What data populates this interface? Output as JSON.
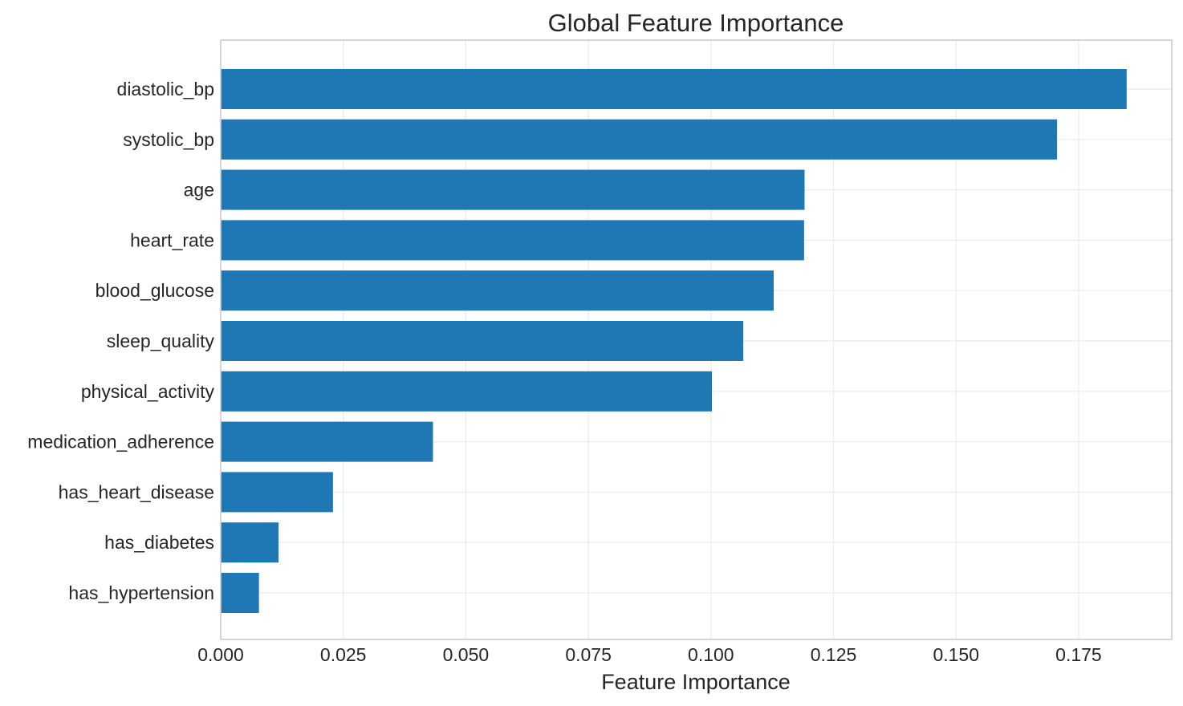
{
  "chart_data": {
    "type": "bar",
    "orientation": "horizontal",
    "title": "Global Feature Importance",
    "xlabel": "Feature Importance",
    "ylabel": "",
    "xlim": [
      0,
      0.194
    ],
    "xticks": [
      0.0,
      0.025,
      0.05,
      0.075,
      0.1,
      0.125,
      0.15,
      0.175
    ],
    "xtick_labels": [
      "0.000",
      "0.025",
      "0.050",
      "0.075",
      "0.100",
      "0.125",
      "0.150",
      "0.175"
    ],
    "grid": true,
    "bar_color": "#1f77b4",
    "categories": [
      "diastolic_bp",
      "systolic_bp",
      "age",
      "heart_rate",
      "blood_glucose",
      "sleep_quality",
      "physical_activity",
      "medication_adherence",
      "has_heart_disease",
      "has_diabetes",
      "has_hypertension"
    ],
    "values": [
      0.1848,
      0.1706,
      0.1191,
      0.119,
      0.1128,
      0.1066,
      0.1002,
      0.0433,
      0.0229,
      0.0118,
      0.0078
    ]
  }
}
